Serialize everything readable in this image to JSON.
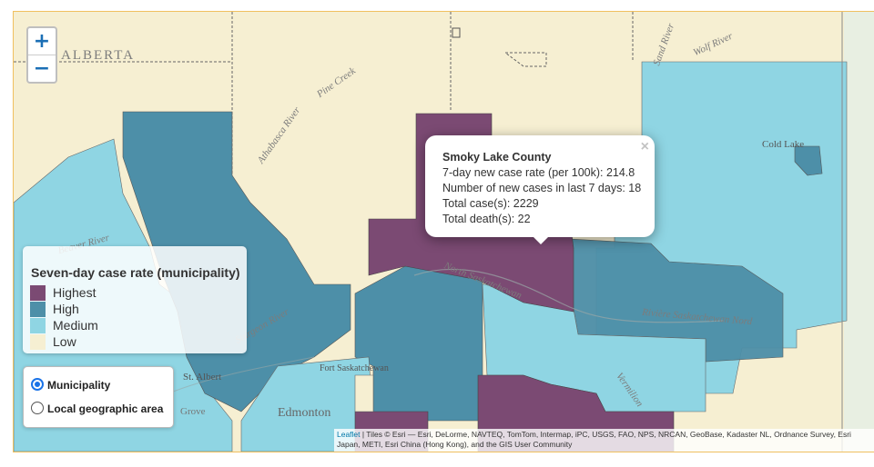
{
  "map": {
    "place_labels": {
      "alberta": "ALBERTA",
      "pine_creek": "Pine Creek",
      "sand_river": "Sand River",
      "wolf_river": "Wolf River",
      "cold_lake": "Cold Lake",
      "beaver_river": "Beaver River",
      "athabasca_river": "Athabasca River",
      "north_sask": "North Saskatchewan",
      "riviere_sask": "Rivière Saskatchewan Nord",
      "riviere": "Rivière Saskatchewan",
      "st_albert": "St. Albert",
      "fort_sask": "Fort Saskatchewan",
      "edmonton": "Edmonton",
      "grove": "Grove",
      "vermilion": "Vermilion",
      "sturgeon": "Sturgeon River"
    },
    "colors": {
      "highest": "#7b4a73",
      "high": "#4d8fa8",
      "medium": "#8fd5e3",
      "low": "#f6efd2"
    }
  },
  "zoom": {
    "in": "+",
    "out": "−"
  },
  "legend": {
    "title": "Seven-day case rate (municipality)",
    "items": [
      {
        "label": "Highest",
        "color": "#7b4a73"
      },
      {
        "label": "High",
        "color": "#4d8fa8"
      },
      {
        "label": "Medium",
        "color": "#8fd5e3"
      },
      {
        "label": "Low",
        "color": "#f6efd2"
      }
    ]
  },
  "layer_toggle": {
    "options": [
      {
        "label": "Municipality",
        "selected": true
      },
      {
        "label": "Local geographic area",
        "selected": false
      }
    ]
  },
  "popup": {
    "close": "×",
    "title": "Smoky Lake County",
    "lines": [
      "7-day new case rate (per 100k): 214.8",
      "Number of new cases in last 7 days: 18",
      "Total case(s): 2229",
      "Total death(s): 22"
    ]
  },
  "attribution": {
    "leaflet": "Leaflet",
    "text": " | Tiles © Esri — Esri, DeLorme, NAVTEQ, TomTom, Intermap, iPC, USGS, FAO, NPS, NRCAN, GeoBase, Kadaster NL, Ordnance Survey, Esri Japan, METI, Esri China (Hong Kong), and the GIS User Community"
  }
}
